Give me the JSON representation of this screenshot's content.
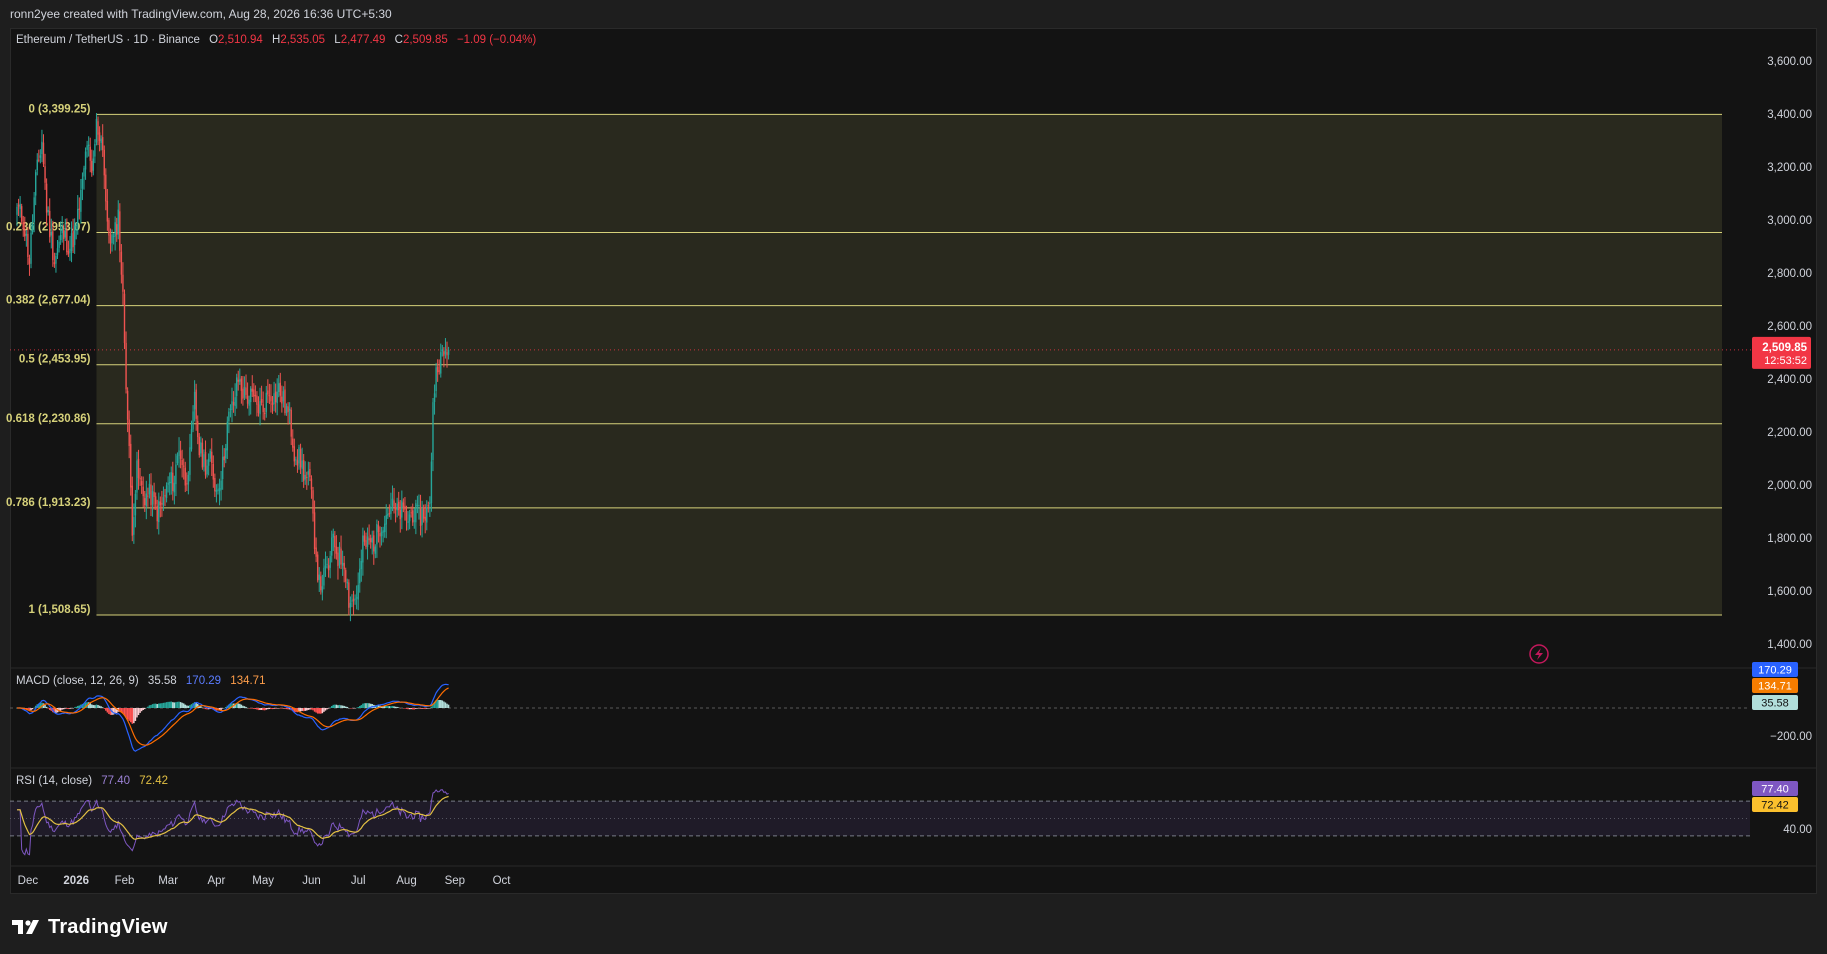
{
  "header": {
    "credit": "ronn2yee created with TradingView.com, Aug 28, 2026 16:36 UTC+5:30"
  },
  "legend": {
    "symbol": "Ethereum / TetherUS · 1D · Binance",
    "open_key": "O",
    "open": "2,510.94",
    "high_key": "H",
    "high": "2,535.05",
    "low_key": "L",
    "low": "2,477.49",
    "close_key": "C",
    "close": "2,509.85",
    "change": "−1.09 (−0.04%)"
  },
  "price_tag": {
    "price": "2,509.85",
    "countdown": "12:53:52"
  },
  "macd": {
    "label": "MACD (close, 12, 26, 9)",
    "hist": "35.58",
    "macd": "170.29",
    "signal": "134.71",
    "axis_tick": "−200.00"
  },
  "rsi": {
    "label": "RSI (14, close)",
    "rsi": "77.40",
    "ma": "72.42",
    "axis_tick": "40.00"
  },
  "footer": {
    "brand": "TradingView"
  },
  "colors": {
    "up": "#26a69a",
    "down": "#ef5350",
    "fib": "#d6d17a",
    "zone": "#2a2a1f",
    "macd_line": "#2962ff",
    "signal_line": "#ff6d00",
    "rsi_line": "#7e57c2",
    "rsi_ma": "#e2c044",
    "tag_red": "#f23645",
    "tag_orange": "#f57c00",
    "tag_blue": "#2962ff",
    "tag_teal": "#b2dfdb",
    "tag_purple": "#7e57c2",
    "tag_yellow": "#fbc02d"
  },
  "icons": {
    "flash": "lightning-icon",
    "logo": "tradingview-logo-icon"
  },
  "chart_data": {
    "type": "candlestick",
    "title": "Ethereum / TetherUS · 1D · Binance",
    "y_ticks": [
      "3,600.00",
      "3,400.00",
      "3,200.00",
      "3,000.00",
      "2,800.00",
      "2,600.00",
      "2,400.00",
      "2,200.00",
      "2,000.00",
      "1,800.00",
      "1,600.00",
      "1,400.00"
    ],
    "y_tick_values": [
      3600,
      3400,
      3200,
      3000,
      2800,
      2600,
      2400,
      2200,
      2000,
      1800,
      1600,
      1400
    ],
    "x_labels": [
      "Dec",
      "2026",
      "Feb",
      "Mar",
      "Apr",
      "May",
      "Jun",
      "Jul",
      "Aug",
      "Sep",
      "Oct"
    ],
    "x_label_dates": [
      "2025-12-01",
      "2026-01-01",
      "2026-02-01",
      "2026-03-01",
      "2026-04-01",
      "2026-05-01",
      "2026-06-01",
      "2026-07-01",
      "2026-08-01",
      "2026-09-01",
      "2026-10-01"
    ],
    "first_candle_date": "2025-11-24",
    "last_candle_date": "2026-08-28",
    "fib_start_date": "2026-01-14",
    "fibonacci": [
      {
        "label": "0 (3,399.25)",
        "value": 3399.25
      },
      {
        "label": "0.236 (2,953.07)",
        "value": 2953.07
      },
      {
        "label": "0.382 (2,677.04)",
        "value": 2677.04
      },
      {
        "label": "0.5 (2,453.95)",
        "value": 2453.95
      },
      {
        "label": "0.618 (2,230.86)",
        "value": 2230.86
      },
      {
        "label": "0.786 (1,913.23)",
        "value": 1913.23
      },
      {
        "label": "1 (1,508.65)",
        "value": 1508.65
      }
    ],
    "close_keypoints": [
      [
        "2025-11-24",
        3050
      ],
      [
        "2025-11-28",
        3000
      ],
      [
        "2025-12-02",
        2850
      ],
      [
        "2025-12-06",
        3150
      ],
      [
        "2025-12-10",
        3300
      ],
      [
        "2025-12-13",
        3050
      ],
      [
        "2025-12-18",
        2850
      ],
      [
        "2025-12-23",
        2950
      ],
      [
        "2025-12-28",
        2900
      ],
      [
        "2026-01-01",
        2970
      ],
      [
        "2026-01-05",
        3130
      ],
      [
        "2026-01-08",
        3300
      ],
      [
        "2026-01-11",
        3150
      ],
      [
        "2026-01-14",
        3360
      ],
      [
        "2026-01-18",
        3290
      ],
      [
        "2026-01-21",
        2960
      ],
      [
        "2026-01-25",
        2920
      ],
      [
        "2026-01-28",
        3020
      ],
      [
        "2026-01-31",
        2700
      ],
      [
        "2026-02-03",
        2250
      ],
      [
        "2026-02-06",
        1850
      ],
      [
        "2026-02-09",
        2050
      ],
      [
        "2026-02-13",
        1960
      ],
      [
        "2026-02-18",
        1960
      ],
      [
        "2026-02-22",
        1900
      ],
      [
        "2026-02-25",
        1920
      ],
      [
        "2026-03-01",
        2000
      ],
      [
        "2026-03-05",
        2020
      ],
      [
        "2026-03-08",
        2150
      ],
      [
        "2026-03-12",
        2020
      ],
      [
        "2026-03-15",
        2100
      ],
      [
        "2026-03-18",
        2320
      ],
      [
        "2026-03-21",
        2130
      ],
      [
        "2026-03-25",
        2080
      ],
      [
        "2026-03-28",
        2090
      ],
      [
        "2026-04-01",
        1980
      ],
      [
        "2026-04-05",
        2070
      ],
      [
        "2026-04-08",
        2230
      ],
      [
        "2026-04-12",
        2310
      ],
      [
        "2026-04-15",
        2400
      ],
      [
        "2026-04-19",
        2340
      ],
      [
        "2026-04-23",
        2330
      ],
      [
        "2026-04-27",
        2300
      ],
      [
        "2026-05-01",
        2290
      ],
      [
        "2026-05-05",
        2360
      ],
      [
        "2026-05-08",
        2330
      ],
      [
        "2026-05-11",
        2360
      ],
      [
        "2026-05-15",
        2300
      ],
      [
        "2026-05-18",
        2250
      ],
      [
        "2026-05-21",
        2130
      ],
      [
        "2026-05-25",
        2090
      ],
      [
        "2026-05-28",
        2030
      ],
      [
        "2026-05-31",
        2010
      ],
      [
        "2026-06-03",
        1800
      ],
      [
        "2026-06-06",
        1620
      ],
      [
        "2026-06-09",
        1650
      ],
      [
        "2026-06-13",
        1710
      ],
      [
        "2026-06-15",
        1810
      ],
      [
        "2026-06-18",
        1730
      ],
      [
        "2026-06-22",
        1720
      ],
      [
        "2026-06-25",
        1570
      ],
      [
        "2026-06-28",
        1560
      ],
      [
        "2026-07-01",
        1610
      ],
      [
        "2026-07-04",
        1770
      ],
      [
        "2026-07-08",
        1780
      ],
      [
        "2026-07-12",
        1790
      ],
      [
        "2026-07-15",
        1850
      ],
      [
        "2026-07-19",
        1890
      ],
      [
        "2026-07-22",
        1920
      ],
      [
        "2026-07-26",
        1890
      ],
      [
        "2026-07-29",
        1900
      ],
      [
        "2026-08-02",
        1870
      ],
      [
        "2026-08-05",
        1900
      ],
      [
        "2026-08-08",
        1880
      ],
      [
        "2026-08-12",
        1890
      ],
      [
        "2026-08-16",
        1910
      ],
      [
        "2026-08-18",
        2320
      ],
      [
        "2026-08-21",
        2470
      ],
      [
        "2026-08-24",
        2480
      ],
      [
        "2026-08-28",
        2509.85
      ]
    ],
    "macd_label": "MACD (close, 12, 26, 9)",
    "macd_axis_ticks": [
      {
        "label": "−200.00",
        "value": -200
      }
    ],
    "rsi_label": "RSI (14, close)",
    "rsi_axis_ticks": [
      {
        "label": "40.00",
        "value": 40
      }
    ],
    "rsi_band": [
      30,
      70
    ],
    "last_values": {
      "macd": 170.29,
      "signal": 134.71,
      "histogram": 35.58,
      "rsi": 77.4,
      "rsi_ma": 72.42
    }
  }
}
